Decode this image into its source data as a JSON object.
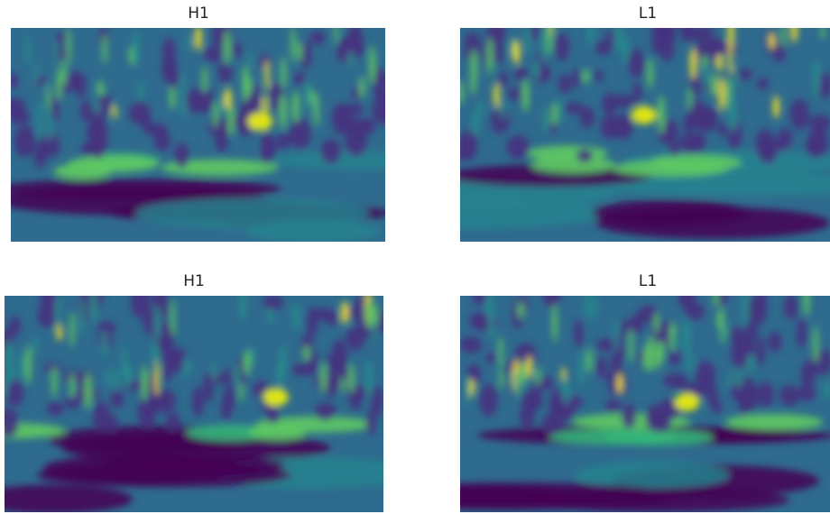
{
  "panels": [
    {
      "title": "H1"
    },
    {
      "title": "L1"
    },
    {
      "title": "H1"
    },
    {
      "title": "L1"
    }
  ]
}
